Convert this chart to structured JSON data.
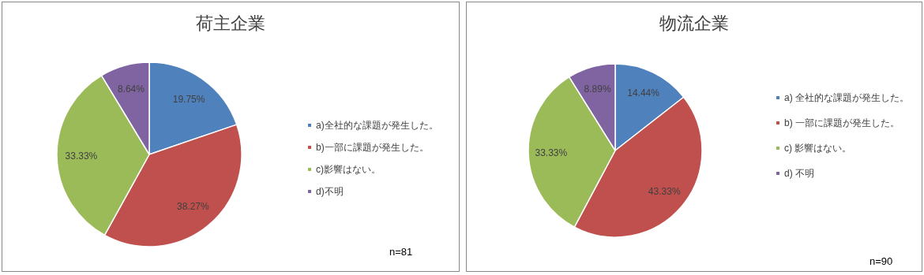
{
  "chart_data": [
    {
      "type": "pie",
      "title": "荷主企業",
      "categories": [
        "a)全社的な課題が発生した。",
        "b)一部に課題が発生した。",
        "c)影響はない。",
        "d)不明"
      ],
      "values": [
        19.75,
        38.27,
        33.33,
        8.64
      ],
      "value_labels": [
        "19.75%",
        "38.27%",
        "33.33%",
        "8.64%"
      ],
      "colors": [
        "#4f81bd",
        "#c0504d",
        "#9bbb59",
        "#8064a2"
      ],
      "legend": "right",
      "annotations": [
        "n=81"
      ]
    },
    {
      "type": "pie",
      "title": "物流企業",
      "categories": [
        "a) 全社的な課題が発生した。",
        "b) 一部に課題が発生した。",
        "c) 影響はない。",
        "d) 不明"
      ],
      "values": [
        14.44,
        43.33,
        33.33,
        8.89
      ],
      "value_labels": [
        "14.44%",
        "43.33%",
        "33.33%",
        "8.89%"
      ],
      "colors": [
        "#4f81bd",
        "#c0504d",
        "#9bbb59",
        "#8064a2"
      ],
      "legend": "right",
      "annotations": [
        "n=90"
      ]
    }
  ]
}
